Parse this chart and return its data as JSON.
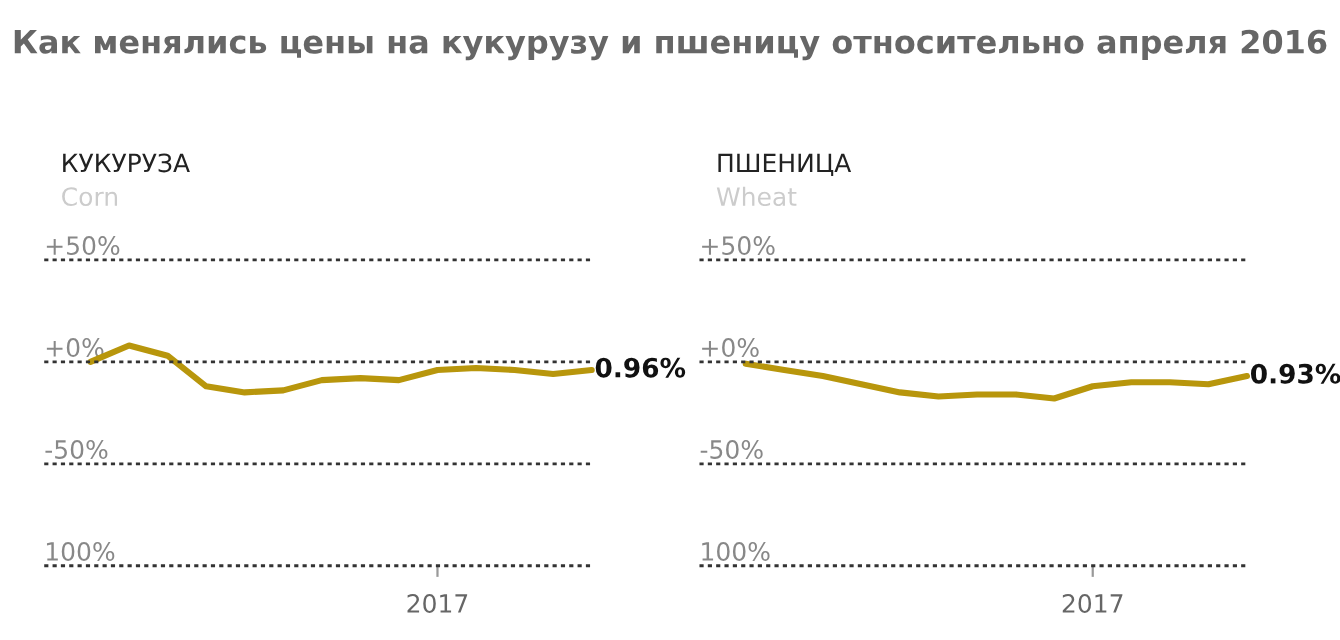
{
  "chart_data": [
    {
      "type": "line",
      "title": "КУКУРУЗА",
      "subtitle": "Corn",
      "annotations": [
        "Как менялись цены на кукурузу и пшеницу относительно апреля 2016",
        "0.96%"
      ],
      "categories": [
        null,
        null,
        null,
        null,
        null,
        null,
        null,
        null,
        null,
        "2017",
        null,
        null,
        null,
        null
      ],
      "series": [
        {
          "color": "#b8960c",
          "values": [
            0,
            8,
            3,
            -12,
            -15,
            -14,
            -9,
            -8,
            -9,
            -4,
            -3,
            -4,
            -6,
            -4
          ]
        }
      ],
      "ylim": [
        -100,
        50
      ],
      "yticks": [
        {
          "value": 50,
          "label": "+50%"
        },
        {
          "value": 0,
          "label": "+0%"
        },
        {
          "value": -50,
          "label": "-50%"
        },
        {
          "value": -100,
          "label": "100%"
        }
      ],
      "grid": "y",
      "legend": false,
      "line_style": "solid",
      "marker": "none"
    },
    {
      "type": "line",
      "title": "ПШЕНИЦА",
      "subtitle": "Wheat",
      "annotations": [
        "0.93%"
      ],
      "categories": [
        null,
        null,
        null,
        null,
        null,
        null,
        null,
        null,
        null,
        "2017",
        null,
        null,
        null,
        null
      ],
      "series": [
        {
          "color": "#b8960c",
          "values": [
            -1,
            -4,
            -7,
            -11,
            -15,
            -17,
            -16,
            -16,
            -18,
            -12,
            -10,
            -10,
            -11,
            -7
          ]
        }
      ],
      "ylim": [
        -100,
        50
      ],
      "yticks": [
        {
          "value": 50,
          "label": "+50%"
        },
        {
          "value": 0,
          "label": "+0%"
        },
        {
          "value": -50,
          "label": "-50%"
        },
        {
          "value": -100,
          "label": "100%"
        }
      ],
      "grid": "y",
      "legend": false,
      "line_style": "solid",
      "marker": "none"
    }
  ]
}
